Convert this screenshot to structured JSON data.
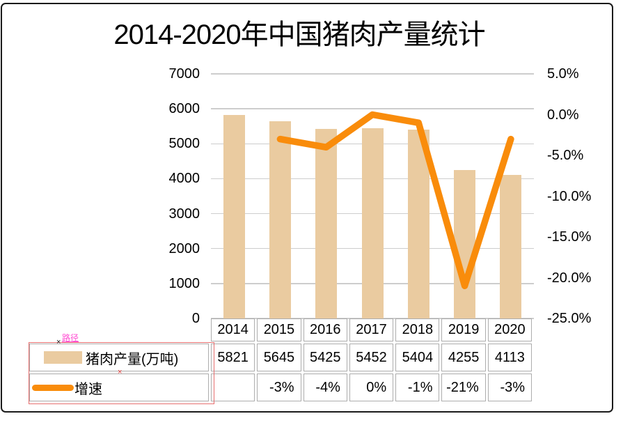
{
  "title": "2014-2020年中国猪肉产量统计",
  "colors": {
    "bar_fill": "#EACBA0",
    "line_stroke": "#F98C0B",
    "gridline": "#CDCDCD",
    "table_border": "#ADADAD",
    "selection_border": "#E87070",
    "annotation_pink": "#FF4DD2",
    "frame_border": "#1a1a1a"
  },
  "annotations": {
    "path_label": "路径",
    "marker1": "×",
    "marker2": "×"
  },
  "chart_data": {
    "type": "combo-bar-line",
    "title": "2014-2020年中国猪肉产量统计",
    "categories": [
      "2014",
      "2015",
      "2016",
      "2017",
      "2018",
      "2019",
      "2020"
    ],
    "series": [
      {
        "name": "猪肉产量(万吨)",
        "type": "bar",
        "axis": "left",
        "color": "#EACBA0",
        "values": [
          5821,
          5645,
          5425,
          5452,
          5404,
          4255,
          4113
        ],
        "labels": [
          "5821",
          "5645",
          "5425",
          "5452",
          "5404",
          "4255",
          "4113"
        ]
      },
      {
        "name": "增速",
        "type": "line",
        "axis": "right",
        "color": "#F98C0B",
        "values": [
          null,
          -3,
          -4,
          0,
          -1,
          -21,
          -3
        ],
        "labels": [
          "",
          "-3%",
          "-4%",
          "0%",
          "-1%",
          "-21%",
          "-3%"
        ]
      }
    ],
    "left_axis": {
      "min": 0,
      "max": 7000,
      "ticks": [
        "7000",
        "6000",
        "5000",
        "4000",
        "3000",
        "2000",
        "1000",
        "0"
      ]
    },
    "right_axis": {
      "min": -25,
      "max": 5,
      "ticks": [
        "5.0%",
        "0.0%",
        "-5.0%",
        "-10.0%",
        "-15.0%",
        "-20.0%",
        "-25.0%"
      ]
    },
    "grid": true,
    "legend_position": "bottom-left-table"
  }
}
